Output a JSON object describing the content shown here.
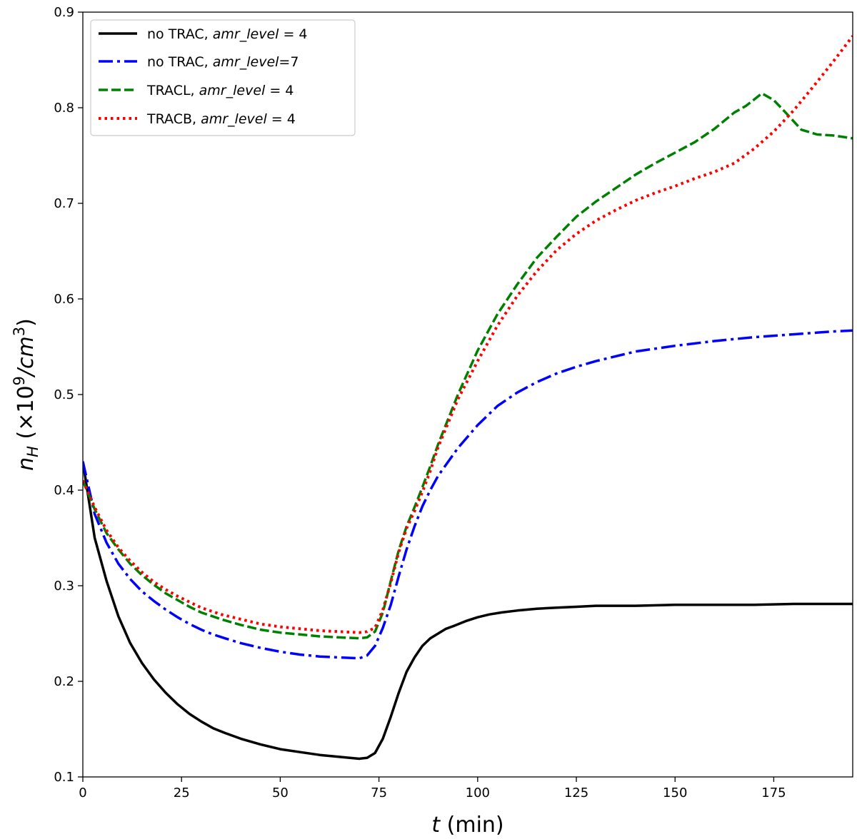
{
  "chart_data": {
    "type": "line",
    "xlabel_var": "t",
    "xlabel_unit": "(min)",
    "ylabel_var": "n",
    "ylabel_sub": "H",
    "ylabel_prefix": "(×10",
    "ylabel_exp": "9",
    "ylabel_unit": "/cm",
    "ylabel_unit_exp": "3",
    "ylabel_suffix": ")",
    "xlim": [
      0,
      195
    ],
    "ylim": [
      0.1,
      0.9
    ],
    "xticks": [
      0,
      25,
      50,
      75,
      100,
      125,
      150,
      175
    ],
    "yticks": [
      0.1,
      0.2,
      0.3,
      0.4,
      0.5,
      0.6,
      0.7,
      0.8,
      0.9
    ],
    "legend_position": "top-left",
    "series": [
      {
        "name": "no TRAC, amr_level = 4",
        "legend_prefix": "no TRAC, ",
        "legend_var": "amr_level",
        "legend_suffix": " = 4",
        "color": "#000000",
        "style": "solid",
        "x": [
          0,
          3,
          6,
          9,
          12,
          15,
          18,
          21,
          24,
          27,
          30,
          33,
          36,
          40,
          45,
          50,
          55,
          60,
          65,
          70,
          72,
          74,
          76,
          78,
          80,
          82,
          84,
          86,
          88,
          90,
          92,
          94,
          97,
          100,
          103,
          106,
          110,
          115,
          120,
          125,
          130,
          140,
          150,
          160,
          170,
          180,
          195
        ],
        "values": [
          0.43,
          0.35,
          0.305,
          0.268,
          0.24,
          0.219,
          0.202,
          0.188,
          0.176,
          0.166,
          0.158,
          0.151,
          0.146,
          0.14,
          0.134,
          0.129,
          0.126,
          0.123,
          0.121,
          0.119,
          0.12,
          0.125,
          0.14,
          0.163,
          0.188,
          0.21,
          0.225,
          0.237,
          0.245,
          0.25,
          0.255,
          0.258,
          0.263,
          0.267,
          0.27,
          0.272,
          0.274,
          0.276,
          0.277,
          0.278,
          0.279,
          0.279,
          0.28,
          0.28,
          0.28,
          0.281,
          0.281
        ]
      },
      {
        "name": "no TRAC, amr_level=7",
        "legend_prefix": "no TRAC, ",
        "legend_var": "amr_level",
        "legend_suffix": "=7",
        "color": "#0000ff",
        "style": "dashdot",
        "x": [
          0,
          3,
          6,
          9,
          12,
          15,
          18,
          21,
          24,
          27,
          30,
          33,
          36,
          40,
          45,
          50,
          55,
          60,
          65,
          70,
          72,
          74,
          76,
          78,
          80,
          82,
          84,
          86,
          88,
          90,
          95,
          100,
          105,
          110,
          115,
          120,
          125,
          130,
          140,
          150,
          160,
          170,
          180,
          190,
          195
        ],
        "values": [
          0.43,
          0.375,
          0.345,
          0.323,
          0.307,
          0.294,
          0.284,
          0.275,
          0.267,
          0.26,
          0.254,
          0.249,
          0.245,
          0.24,
          0.235,
          0.231,
          0.228,
          0.226,
          0.225,
          0.224,
          0.227,
          0.237,
          0.256,
          0.28,
          0.31,
          0.338,
          0.362,
          0.383,
          0.4,
          0.415,
          0.444,
          0.468,
          0.488,
          0.502,
          0.513,
          0.522,
          0.529,
          0.535,
          0.545,
          0.551,
          0.556,
          0.56,
          0.563,
          0.566,
          0.567
        ]
      },
      {
        "name": "TRACL, amr_level = 4",
        "legend_prefix": "TRACL, ",
        "legend_var": "amr_level",
        "legend_suffix": " = 4",
        "color": "#008000",
        "style": "dashed",
        "x": [
          0,
          3,
          6,
          9,
          12,
          15,
          18,
          21,
          24,
          27,
          30,
          35,
          40,
          45,
          50,
          55,
          60,
          65,
          70,
          72,
          74,
          76,
          78,
          80,
          82,
          84,
          86,
          88,
          90,
          95,
          100,
          105,
          110,
          115,
          120,
          125,
          130,
          135,
          140,
          145,
          150,
          155,
          160,
          165,
          168,
          172,
          175,
          178,
          182,
          186,
          190,
          195
        ],
        "values": [
          0.41,
          0.38,
          0.355,
          0.338,
          0.323,
          0.311,
          0.301,
          0.292,
          0.285,
          0.278,
          0.272,
          0.265,
          0.259,
          0.254,
          0.251,
          0.249,
          0.247,
          0.246,
          0.245,
          0.246,
          0.252,
          0.272,
          0.305,
          0.337,
          0.362,
          0.382,
          0.403,
          0.425,
          0.448,
          0.5,
          0.546,
          0.584,
          0.615,
          0.643,
          0.665,
          0.686,
          0.702,
          0.716,
          0.73,
          0.742,
          0.753,
          0.764,
          0.778,
          0.795,
          0.802,
          0.815,
          0.808,
          0.795,
          0.777,
          0.772,
          0.771,
          0.768
        ]
      },
      {
        "name": "TRACB, amr_level = 4",
        "legend_prefix": "TRACB, ",
        "legend_var": "amr_level",
        "legend_suffix": " = 4",
        "color": "#ff0000",
        "style": "dotted",
        "x": [
          0,
          3,
          6,
          9,
          12,
          15,
          18,
          21,
          24,
          27,
          30,
          35,
          40,
          45,
          50,
          55,
          60,
          65,
          70,
          72,
          74,
          76,
          78,
          80,
          82,
          84,
          86,
          88,
          90,
          95,
          100,
          105,
          110,
          115,
          120,
          125,
          130,
          135,
          140,
          145,
          150,
          155,
          160,
          165,
          170,
          175,
          180,
          185,
          190,
          195
        ],
        "values": [
          0.41,
          0.382,
          0.358,
          0.34,
          0.326,
          0.314,
          0.304,
          0.296,
          0.289,
          0.283,
          0.277,
          0.27,
          0.265,
          0.26,
          0.257,
          0.255,
          0.253,
          0.252,
          0.251,
          0.252,
          0.256,
          0.275,
          0.303,
          0.335,
          0.36,
          0.378,
          0.398,
          0.42,
          0.445,
          0.495,
          0.535,
          0.572,
          0.603,
          0.629,
          0.651,
          0.668,
          0.682,
          0.693,
          0.703,
          0.711,
          0.718,
          0.726,
          0.733,
          0.742,
          0.757,
          0.775,
          0.797,
          0.822,
          0.848,
          0.875
        ]
      }
    ]
  }
}
